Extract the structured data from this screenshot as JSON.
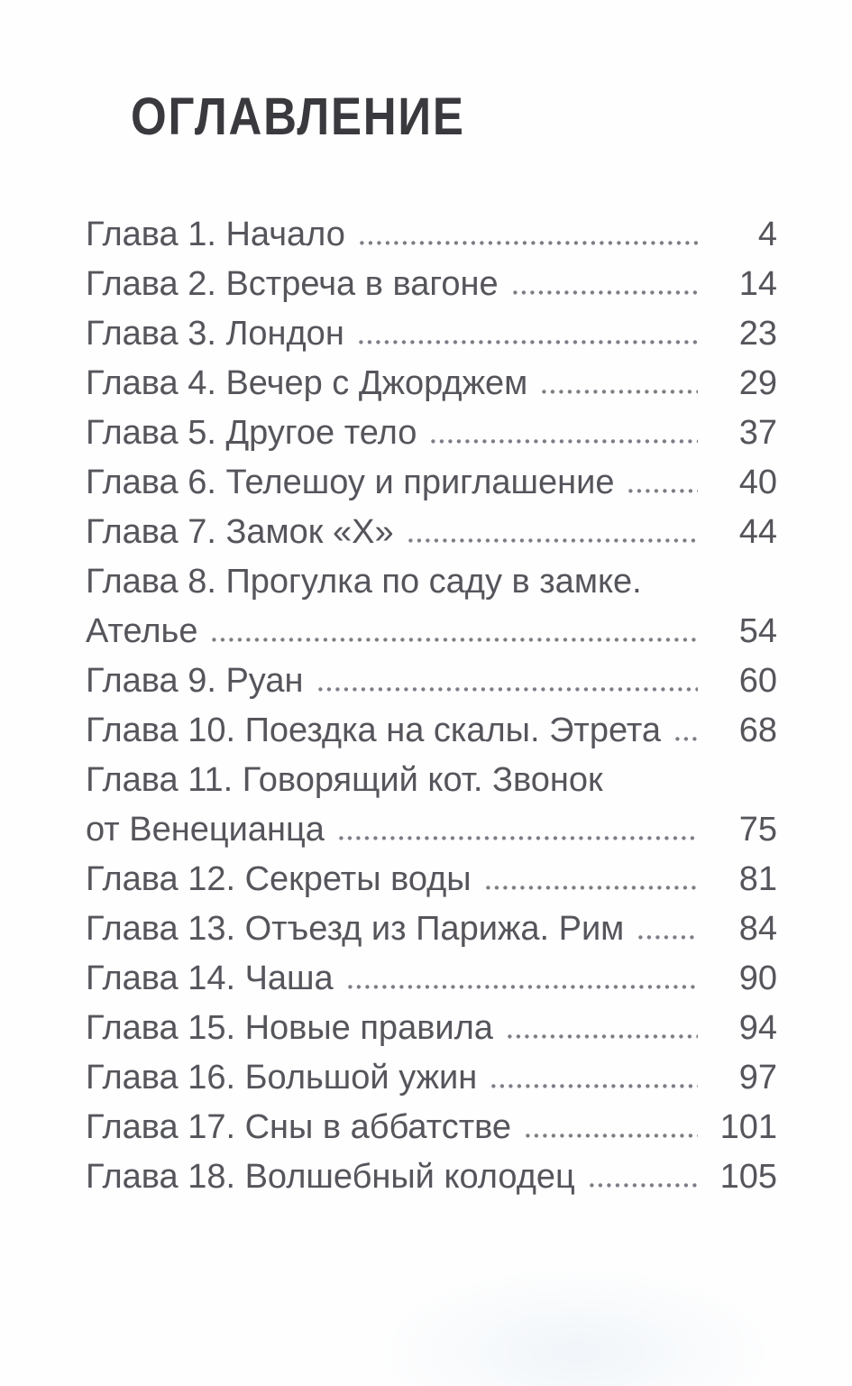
{
  "page": {
    "title": "ОГЛАВЛЕНИЕ",
    "colors": {
      "background": "#fefefe",
      "title": "#39393e",
      "text": "#55555c",
      "dots": "#7d7d85"
    },
    "entries": [
      {
        "lines": [
          "Глава 1. Начало"
        ],
        "page": "4"
      },
      {
        "lines": [
          "Глава 2. Встреча в вагоне"
        ],
        "page": "14"
      },
      {
        "lines": [
          "Глава 3. Лондон"
        ],
        "page": "23"
      },
      {
        "lines": [
          "Глава 4. Вечер с Джорджем"
        ],
        "page": "29"
      },
      {
        "lines": [
          "Глава 5. Другое тело"
        ],
        "page": "37"
      },
      {
        "lines": [
          "Глава 6. Телешоу и приглашение"
        ],
        "page": "40"
      },
      {
        "lines": [
          "Глава 7. Замок «Х»"
        ],
        "page": "44"
      },
      {
        "lines": [
          "Глава 8. Прогулка по саду в замке.",
          "Ателье"
        ],
        "page": "54"
      },
      {
        "lines": [
          "Глава 9. Руан"
        ],
        "page": "60"
      },
      {
        "lines": [
          "Глава 10. Поездка на скалы. Этрета"
        ],
        "page": "68"
      },
      {
        "lines": [
          "Глава 11. Говорящий кот. Звонок",
          "от Венецианца"
        ],
        "page": "75"
      },
      {
        "lines": [
          "Глава 12. Секреты воды"
        ],
        "page": "81"
      },
      {
        "lines": [
          "Глава 13. Отъезд из Парижа. Рим"
        ],
        "page": "84"
      },
      {
        "lines": [
          "Глава 14. Чаша"
        ],
        "page": "90"
      },
      {
        "lines": [
          "Глава 15. Новые правила"
        ],
        "page": "94"
      },
      {
        "lines": [
          "Глава 16. Большой ужин"
        ],
        "page": "97"
      },
      {
        "lines": [
          "Глава 17. Сны в аббатстве"
        ],
        "page": "101"
      },
      {
        "lines": [
          "Глава 18. Волшебный колодец"
        ],
        "page": "105"
      }
    ]
  }
}
